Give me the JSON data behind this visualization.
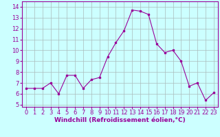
{
  "x": [
    0,
    1,
    2,
    3,
    4,
    5,
    6,
    7,
    8,
    9,
    10,
    11,
    12,
    13,
    14,
    15,
    16,
    17,
    18,
    19,
    20,
    21,
    22,
    23
  ],
  "y": [
    6.5,
    6.5,
    6.5,
    7.0,
    6.0,
    7.7,
    7.7,
    6.5,
    7.3,
    7.5,
    9.4,
    10.7,
    11.8,
    13.7,
    13.6,
    13.3,
    10.6,
    9.8,
    10.0,
    9.0,
    6.7,
    7.0,
    5.4,
    6.1
  ],
  "line_color": "#990099",
  "marker": "s",
  "marker_size": 1.8,
  "bg_color": "#ccffff",
  "grid_color": "#aabbbb",
  "xlabel": "Windchill (Refroidissement éolien,°C)",
  "xlabel_color": "#990099",
  "xlabel_fontsize": 6.5,
  "tick_color": "#990099",
  "tick_fontsize": 6.0,
  "ylim": [
    4.8,
    14.5
  ],
  "yticks": [
    5,
    6,
    7,
    8,
    9,
    10,
    11,
    12,
    13,
    14
  ],
  "xlim": [
    -0.5,
    23.5
  ],
  "xticks": [
    0,
    1,
    2,
    3,
    4,
    5,
    6,
    7,
    8,
    9,
    10,
    11,
    12,
    13,
    14,
    15,
    16,
    17,
    18,
    19,
    20,
    21,
    22,
    23
  ]
}
